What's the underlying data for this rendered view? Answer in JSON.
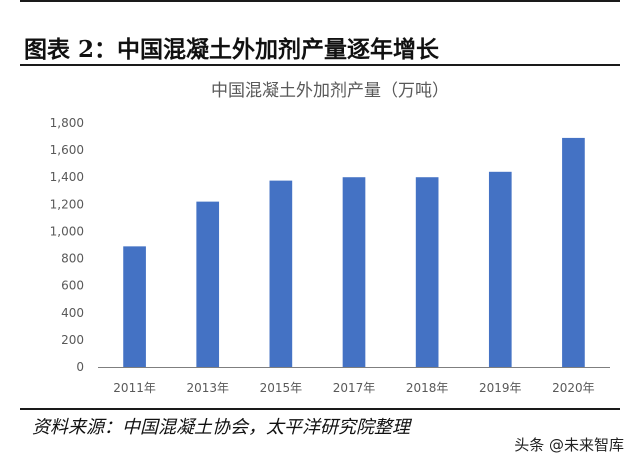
{
  "figure_title": "图表 2：中国混凝土外加剂产量逐年增长",
  "source_note": "资料来源：中国混凝土协会，太平洋研究院整理",
  "watermark": "头条 @未来智库",
  "chart_data": {
    "type": "bar",
    "title": "中国混凝土外加剂产量（万吨）",
    "xlabel": "",
    "ylabel": "",
    "categories": [
      "2011年",
      "2013年",
      "2015年",
      "2017年",
      "2018年",
      "2019年",
      "2020年"
    ],
    "values": [
      890,
      1220,
      1375,
      1400,
      1400,
      1440,
      1690
    ],
    "ylim": [
      0,
      1800
    ],
    "yticks": [
      0,
      200,
      400,
      600,
      800,
      1000,
      1200,
      1400,
      1600,
      1800
    ],
    "ytick_labels": [
      "0",
      "200",
      "400",
      "600",
      "800",
      "1,000",
      "1,200",
      "1,400",
      "1,600",
      "1,800"
    ],
    "grid": false,
    "legend": "none",
    "bar_color": "#4472c4",
    "axis_color": "#7f7f7f"
  }
}
